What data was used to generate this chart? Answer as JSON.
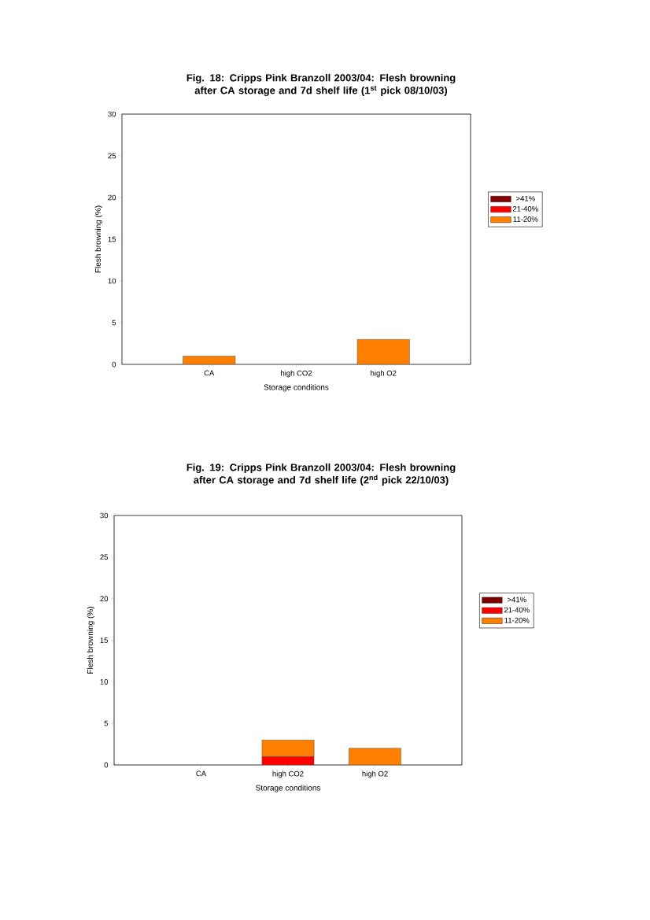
{
  "chart_data": [
    {
      "type": "bar",
      "title": "Fig. 18: Cripps Pink Branzoll 2003/04: Flesh browning after CA storage and 7d shelf life (1$^{st}$ pick 08/10/03)",
      "xlabel": "Storage conditions",
      "ylabel": "Flesh browning (%)",
      "categories": [
        "CA",
        "high CO2",
        "high O2"
      ],
      "stacked": true,
      "ylim": [
        0,
        30
      ],
      "yticks": [
        0,
        5,
        10,
        15,
        20,
        25,
        30
      ],
      "legend": "right",
      "series": [
        {
          "name": ">41%",
          "color": "#800000",
          "values": [
            0,
            0,
            0
          ]
        },
        {
          "name": "21-40%",
          "color": "#ff0000",
          "values": [
            0,
            0,
            0
          ]
        },
        {
          "name": "11-20%",
          "color": "#ff8000",
          "values": [
            1,
            0,
            3
          ]
        }
      ]
    },
    {
      "type": "bar",
      "title": "Fig. 19: Cripps Pink Branzoll 2003/04: Flesh browning after CA storage and 7d shelf life (2$^{nd}$ pick 22/10/03)",
      "xlabel": "Storage conditions",
      "ylabel": "Flesh browning (%)",
      "categories": [
        "CA",
        "high CO2",
        "high O2"
      ],
      "stacked": true,
      "ylim": [
        0,
        30
      ],
      "yticks": [
        0,
        5,
        10,
        15,
        20,
        25,
        30
      ],
      "legend": "right",
      "series": [
        {
          "name": ">41%",
          "color": "#800000",
          "values": [
            0,
            0,
            0
          ]
        },
        {
          "name": "21-40%",
          "color": "#ff0000",
          "values": [
            0,
            1,
            0
          ]
        },
        {
          "name": "11-20%",
          "color": "#ff8000",
          "values": [
            0,
            2,
            2
          ]
        }
      ]
    }
  ]
}
